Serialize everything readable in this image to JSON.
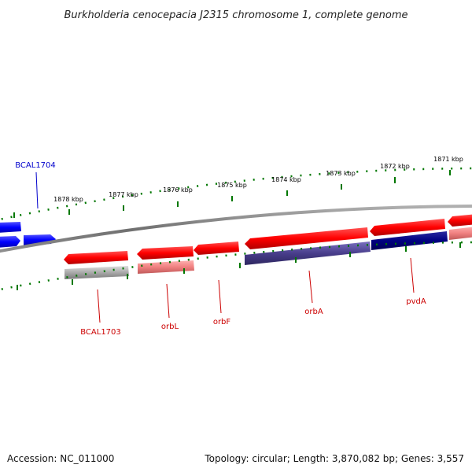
{
  "title": "Burkholderia cenocepacia J2315 chromosome 1, complete genome",
  "accession": "Accession: NC_011000",
  "topology": "Topology: circular; Length: 3,870,082 bp; Genes: 3,557",
  "colors": {
    "forward_gene": "#ff0000",
    "reverse_gene": "#0000ff",
    "dark_reverse_gene": "#000080",
    "purple_gene": "#483d8b",
    "pink_gene": "#f08080",
    "gray_gene": "#a9a9a9",
    "backbone": "#808080",
    "tick": "#007700",
    "forward_label": "#cc0000",
    "reverse_label": "#0000cc"
  },
  "scale_labels": [
    "1878 kbp",
    "1877 kbp",
    "1876 kbp",
    "1875 kbp",
    "1874 kbp",
    "1873 kbp",
    "1872 kbp",
    "1871 kbp"
  ],
  "gene_labels": [
    {
      "name": "BCAL1704",
      "strand": "reverse"
    },
    {
      "name": "BCAL1703",
      "strand": "forward"
    },
    {
      "name": "orbL",
      "strand": "forward"
    },
    {
      "name": "orbF",
      "strand": "forward"
    },
    {
      "name": "orbA",
      "strand": "forward"
    },
    {
      "name": "pvdA",
      "strand": "forward"
    }
  ]
}
